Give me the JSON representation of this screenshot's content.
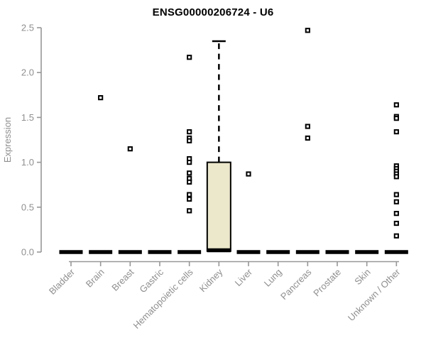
{
  "chart_data": {
    "type": "boxplot",
    "title": "ENSG00000206724 - U6",
    "ylabel": "Expression",
    "ylim": [
      0,
      2.5
    ],
    "y_ticks": [
      0.0,
      0.5,
      1.0,
      1.5,
      2.0,
      2.5
    ],
    "grid": false,
    "categories": [
      "Bladder",
      "Brain",
      "Breast",
      "Gastric",
      "Hematopoietic cells",
      "Kidney",
      "Liver",
      "Lung",
      "Pancreas",
      "Prostate",
      "Skin",
      "Unknown / Other"
    ],
    "colors": {
      "box_fill": "#ece8cb",
      "box_stroke": "#000000",
      "axis_line": "#979797",
      "axis_text": "#8f8f8f",
      "title_text": "#000000",
      "outlier_fill": "#ffffff",
      "outlier_stroke": "#000000"
    },
    "boxes": [
      {
        "category": "Bladder",
        "q1": 0,
        "median": 0,
        "q3": 0,
        "whisker_low": 0,
        "whisker_high": 0,
        "outliers": []
      },
      {
        "category": "Brain",
        "q1": 0,
        "median": 0,
        "q3": 0,
        "whisker_low": 0,
        "whisker_high": 0,
        "outliers": [
          1.72
        ]
      },
      {
        "category": "Breast",
        "q1": 0,
        "median": 0,
        "q3": 0,
        "whisker_low": 0,
        "whisker_high": 0,
        "outliers": [
          1.15
        ]
      },
      {
        "category": "Gastric",
        "q1": 0,
        "median": 0,
        "q3": 0,
        "whisker_low": 0,
        "whisker_high": 0,
        "outliers": []
      },
      {
        "category": "Hematopoietic cells",
        "q1": 0,
        "median": 0,
        "q3": 0,
        "whisker_low": 0,
        "whisker_high": 0,
        "outliers": [
          2.17,
          1.34,
          1.27,
          1.24,
          1.04,
          1.0,
          0.88,
          0.82,
          0.78,
          0.64,
          0.59,
          0.46
        ]
      },
      {
        "category": "Kidney",
        "q1": 0.01,
        "median": 0.02,
        "q3": 1.0,
        "whisker_low": 0,
        "whisker_high": 2.35,
        "outliers": []
      },
      {
        "category": "Liver",
        "q1": 0,
        "median": 0,
        "q3": 0,
        "whisker_low": 0,
        "whisker_high": 0,
        "outliers": [
          0.87
        ]
      },
      {
        "category": "Lung",
        "q1": 0,
        "median": 0,
        "q3": 0,
        "whisker_low": 0,
        "whisker_high": 0,
        "outliers": []
      },
      {
        "category": "Pancreas",
        "q1": 0,
        "median": 0,
        "q3": 0,
        "whisker_low": 0,
        "whisker_high": 0,
        "outliers": [
          2.47,
          1.4,
          1.27
        ]
      },
      {
        "category": "Prostate",
        "q1": 0,
        "median": 0,
        "q3": 0,
        "whisker_low": 0,
        "whisker_high": 0,
        "outliers": []
      },
      {
        "category": "Skin",
        "q1": 0,
        "median": 0,
        "q3": 0,
        "whisker_low": 0,
        "whisker_high": 0,
        "outliers": []
      },
      {
        "category": "Unknown / Other",
        "q1": 0,
        "median": 0,
        "q3": 0,
        "whisker_low": 0,
        "whisker_high": 0,
        "outliers": [
          1.64,
          1.51,
          1.49,
          1.34,
          0.96,
          0.93,
          0.9,
          0.87,
          0.84,
          0.64,
          0.56,
          0.43,
          0.32,
          0.18
        ]
      }
    ]
  }
}
